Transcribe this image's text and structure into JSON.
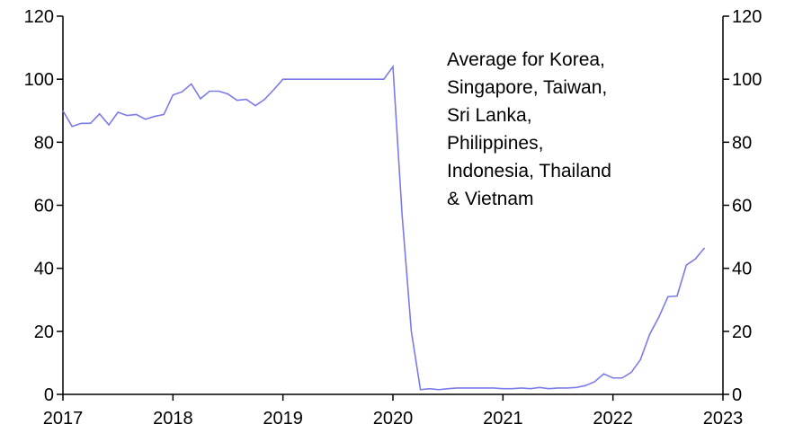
{
  "chart_data": {
    "type": "line",
    "annotation": [
      "Average for Korea,",
      "Singapore, Taiwan,",
      "Sri Lanka,",
      "Philippines,",
      "Indonesia, Thailand",
      "& Vietnam"
    ],
    "x": [
      2017,
      2017.083,
      2017.167,
      2017.25,
      2017.333,
      2017.417,
      2017.5,
      2017.583,
      2017.667,
      2017.75,
      2017.833,
      2017.917,
      2018,
      2018.083,
      2018.167,
      2018.25,
      2018.333,
      2018.417,
      2018.5,
      2018.583,
      2018.667,
      2018.75,
      2018.833,
      2018.917,
      2019,
      2019.083,
      2019.167,
      2019.25,
      2019.333,
      2019.417,
      2019.5,
      2019.583,
      2019.667,
      2019.75,
      2019.833,
      2019.917,
      2020,
      2020.083,
      2020.167,
      2020.25,
      2020.333,
      2020.417,
      2020.5,
      2020.583,
      2020.667,
      2020.75,
      2020.833,
      2020.917,
      2021,
      2021.083,
      2021.167,
      2021.25,
      2021.333,
      2021.417,
      2021.5,
      2021.583,
      2021.667,
      2021.75,
      2021.833,
      2021.917,
      2022,
      2022.083,
      2022.167,
      2022.25,
      2022.333,
      2022.417,
      2022.5,
      2022.583,
      2022.667,
      2022.75,
      2022.833
    ],
    "series": [
      {
        "name": "Average",
        "color": "#7b7be8",
        "values": [
          90,
          85,
          86,
          86,
          89,
          85.5,
          89.5,
          88.5,
          88.8,
          87.3,
          88.2,
          88.8,
          95,
          96,
          98.5,
          93.8,
          96.2,
          96.2,
          95.3,
          93.3,
          93.6,
          91.6,
          93.6,
          96.7,
          100,
          100,
          100,
          100,
          100,
          100,
          100,
          100,
          100,
          100,
          100,
          100,
          104,
          57,
          20,
          1.5,
          1.8,
          1.5,
          1.8,
          2,
          2,
          2,
          2,
          2,
          1.8,
          1.8,
          2,
          1.8,
          2.2,
          1.8,
          2,
          2,
          2.2,
          2.8,
          4,
          6.5,
          5.2,
          5.2,
          7,
          11,
          19,
          24.5,
          31,
          31.2,
          41,
          43,
          46.5
        ]
      }
    ],
    "xlim": [
      2017,
      2023
    ],
    "xticks": [
      2017,
      2018,
      2019,
      2020,
      2021,
      2022,
      2023
    ],
    "ylim": [
      0,
      120
    ],
    "yticks": [
      0,
      20,
      40,
      60,
      80,
      100,
      120
    ],
    "y2lim": [
      0,
      120
    ],
    "y2ticks": [
      0,
      20,
      40,
      60,
      80,
      100,
      120
    ],
    "grid": false
  }
}
